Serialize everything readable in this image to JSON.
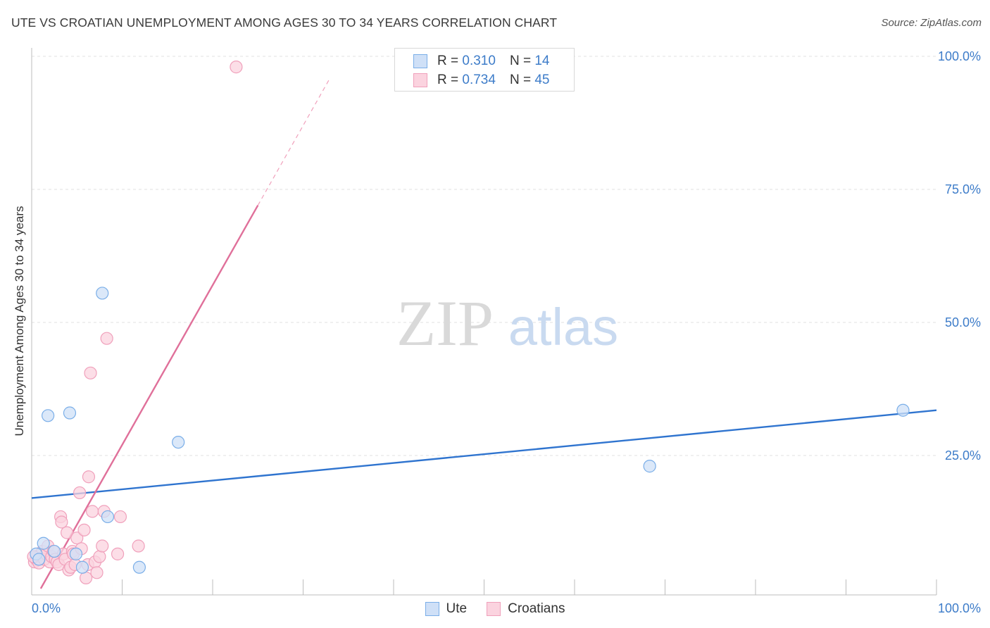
{
  "chart_data": {
    "type": "scatter",
    "title": "UTE VS CROATIAN UNEMPLOYMENT AMONG AGES 30 TO 34 YEARS CORRELATION CHART",
    "source": "Source: ZipAtlas.com",
    "xlabel": "",
    "ylabel": "Unemployment Among Ages 30 to 34 years",
    "xlim": [
      0,
      100
    ],
    "ylim": [
      0,
      100
    ],
    "x_tick_labels": [
      "0.0%",
      "100.0%"
    ],
    "y_ticks": [
      25,
      50,
      75,
      100
    ],
    "y_tick_labels": [
      "25.0%",
      "50.0%",
      "75.0%",
      "100.0%"
    ],
    "watermark": {
      "zip": "ZIP",
      "atlas": "atlas"
    },
    "legend": [
      {
        "r_label": "R =",
        "r": "0.310",
        "n_label": "N =",
        "n": "14"
      },
      {
        "r_label": "R =",
        "r": "0.734",
        "n_label": "N =",
        "n": "45"
      }
    ],
    "series": [
      {
        "name": "Ute",
        "color": "#7aaee8",
        "fill": "#cfe0f7",
        "line_color": "#2f74cf",
        "trend": {
          "x": [
            0,
            100
          ],
          "y": [
            17,
            33.5
          ]
        },
        "points": [
          [
            0.5,
            6.5
          ],
          [
            1.3,
            8.5
          ],
          [
            1.8,
            32.5
          ],
          [
            2.5,
            7
          ],
          [
            4.2,
            33
          ],
          [
            4.9,
            6.5
          ],
          [
            5.6,
            4
          ],
          [
            7.8,
            55.5
          ],
          [
            8.4,
            13.5
          ],
          [
            11.9,
            4
          ],
          [
            16.2,
            27.5
          ],
          [
            68.3,
            23
          ],
          [
            96.3,
            33.5
          ],
          [
            0.8,
            5.5
          ]
        ]
      },
      {
        "name": "Croatians",
        "color": "#f0a0bb",
        "fill": "#fbd3df",
        "line_color": "#e0709a",
        "trend": {
          "x": [
            1,
            25
          ],
          "y": [
            0,
            72
          ]
        },
        "trend_dashed": {
          "x": [
            25,
            33
          ],
          "y": [
            72,
            96
          ]
        },
        "points": [
          [
            0.3,
            5
          ],
          [
            0.5,
            5.5
          ],
          [
            0.6,
            6
          ],
          [
            0.8,
            4.8
          ],
          [
            1,
            6.5
          ],
          [
            1.2,
            7
          ],
          [
            1.4,
            5.5
          ],
          [
            1.6,
            6.5
          ],
          [
            1.8,
            8
          ],
          [
            2,
            5
          ],
          [
            2.2,
            6
          ],
          [
            2.4,
            7
          ],
          [
            2.6,
            5.5
          ],
          [
            2.8,
            5
          ],
          [
            3,
            4.5
          ],
          [
            3.2,
            13.5
          ],
          [
            3.3,
            12.5
          ],
          [
            3.5,
            6.5
          ],
          [
            3.7,
            5.5
          ],
          [
            3.9,
            10.5
          ],
          [
            4.1,
            3.5
          ],
          [
            4.3,
            4
          ],
          [
            4.5,
            7
          ],
          [
            4.6,
            6.5
          ],
          [
            4.8,
            4.5
          ],
          [
            5,
            9.5
          ],
          [
            5.3,
            18
          ],
          [
            5.5,
            7.5
          ],
          [
            5.8,
            11
          ],
          [
            6,
            2
          ],
          [
            6.2,
            4.5
          ],
          [
            6.3,
            21
          ],
          [
            6.5,
            40.5
          ],
          [
            6.7,
            14.5
          ],
          [
            7,
            5
          ],
          [
            7.2,
            3
          ],
          [
            7.5,
            6
          ],
          [
            7.8,
            8
          ],
          [
            8,
            14.5
          ],
          [
            8.3,
            47
          ],
          [
            9.5,
            6.5
          ],
          [
            9.8,
            13.5
          ],
          [
            11.8,
            8
          ],
          [
            22.6,
            98
          ],
          [
            0.2,
            6
          ]
        ]
      }
    ]
  }
}
